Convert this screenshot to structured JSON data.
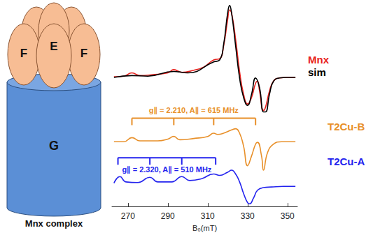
{
  "chart_data": {
    "type": "line",
    "x_label": "B₀(mT)",
    "xlim": [
      262,
      355
    ],
    "xticks": [
      270,
      290,
      310,
      330,
      350
    ],
    "ylim": [
      0,
      100
    ],
    "tick_labels": "x",
    "grid": false,
    "series": [
      {
        "name": "Mnx",
        "color": "#e8201c",
        "x": [
          263,
          268,
          272,
          276,
          282,
          290,
          293,
          297,
          303,
          308,
          313,
          316,
          318,
          320,
          321,
          322,
          324,
          326,
          328,
          330,
          332,
          334,
          335,
          336,
          338,
          339,
          341,
          343,
          346,
          350,
          354
        ],
        "values": [
          63.9,
          64.2,
          65.8,
          64.5,
          64.9,
          65.8,
          67.4,
          66.1,
          67.1,
          68.7,
          72.2,
          72.8,
          79.2,
          92.0,
          96.8,
          95.2,
          82.4,
          66.5,
          55.3,
          50.5,
          53.7,
          60.7,
          61.7,
          56.9,
          47.3,
          48.9,
          56.9,
          61.7,
          63.3,
          63.6,
          63.6
        ]
      },
      {
        "name": "sim",
        "color": "#000000",
        "x": [
          263,
          272,
          280,
          293,
          300,
          313,
          316,
          318,
          320,
          321,
          322,
          324,
          326,
          328,
          330,
          332,
          334,
          336,
          338,
          339,
          341,
          343,
          346,
          350,
          354
        ],
        "values": [
          63.6,
          64.5,
          64.2,
          66.5,
          65.8,
          71.2,
          72.2,
          79.9,
          95.2,
          99.0,
          95.2,
          79.2,
          63.3,
          53.7,
          49.8,
          55.3,
          63.3,
          58.5,
          46.6,
          46.6,
          55.3,
          61.7,
          63.3,
          63.6,
          63.6
        ]
      },
      {
        "name": "T2Cu-B",
        "color": "#e8902a",
        "x": [
          263,
          268,
          272,
          276,
          285,
          290,
          293,
          296,
          303,
          310,
          313,
          315,
          318,
          322,
          324,
          326,
          328,
          330,
          332,
          334,
          335,
          337,
          338,
          340,
          343,
          347,
          354
        ],
        "values": [
          31.9,
          31.9,
          33.9,
          32.3,
          32.3,
          33.2,
          34.5,
          32.9,
          33.5,
          34.5,
          36.1,
          35.5,
          36.1,
          37.7,
          38.3,
          36.1,
          29.7,
          20.1,
          24.9,
          30.7,
          31.6,
          24.9,
          17.9,
          26.5,
          30.7,
          31.9,
          31.9
        ]
      },
      {
        "name": "T2Cu-A",
        "color": "#2323ee",
        "x": [
          263,
          266,
          269,
          275,
          281,
          285,
          292,
          297,
          301,
          307,
          313,
          316,
          320,
          322,
          324,
          326,
          328,
          330,
          331,
          333,
          335,
          338,
          342,
          348,
          354
        ],
        "values": [
          11.5,
          14.7,
          12.1,
          11.8,
          14.4,
          12.1,
          12.1,
          14.7,
          12.8,
          13.7,
          16.0,
          15.3,
          16.9,
          17.9,
          16.0,
          12.1,
          6.4,
          1.9,
          1.3,
          4.2,
          8.0,
          9.3,
          9.6,
          9.9,
          9.9
        ]
      }
    ],
    "annotations": [
      {
        "text": "g∥ = 2.210, A∥ = 615 MHz",
        "color": "#e8902a",
        "ticks": [
          272,
          293,
          313,
          334
        ],
        "y": 43.5,
        "text_y": 47.5
      },
      {
        "text": "g∥ = 2.320, A∥ = 510 MHz",
        "color": "#2323ee",
        "ticks": [
          265,
          281,
          297,
          314
        ],
        "y": 24.0,
        "text_y": 18.3
      }
    ]
  },
  "diagram": {
    "top_labels": [
      "F",
      "E",
      "F"
    ],
    "base_label": "G",
    "caption": "Mnx complex"
  }
}
